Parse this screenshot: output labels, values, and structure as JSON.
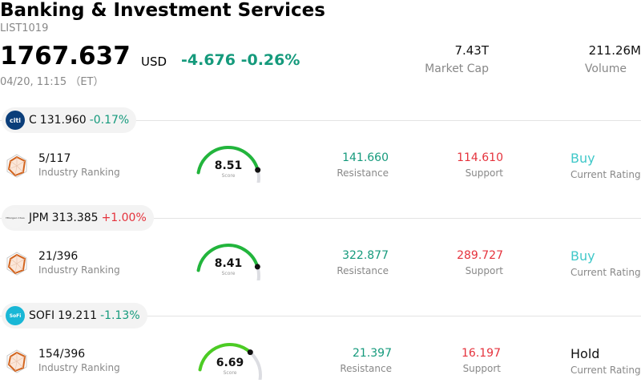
{
  "header": {
    "title": "Banking & Investment Services",
    "code": "LIST1019",
    "price": "1767.637",
    "currency": "USD",
    "change": "-4.676",
    "change_pct": "-0.26%",
    "time": "04/20, 11:15 （ET）",
    "market_cap_value": "7.43T",
    "market_cap_label": "Market Cap",
    "volume_value": "211.26M",
    "volume_label": "Volume"
  },
  "colors": {
    "up": "#e5323c",
    "down": "#159a7c",
    "buy": "#40c8c9",
    "gauge_green": "#22b53c",
    "gauge_track": "#dcdde2"
  },
  "stocks": [
    {
      "ticker": "C",
      "price": "131.960",
      "change_pct": "-0.17%",
      "logo_text": "citi",
      "logo_icon": "citi-logo-icon",
      "rank": "5/117",
      "rank_label": "Industry Ranking",
      "score": "8.51",
      "score_fraction": 0.851,
      "score_label": "Score",
      "resistance": "141.660",
      "resistance_label": "Resistance",
      "support": "114.610",
      "support_label": "Support",
      "rating": "Buy",
      "rating_label": "Current Rating"
    },
    {
      "ticker": "JPM",
      "price": "313.385",
      "change_pct": "+1.00%",
      "logo_text": "JPMorgan Chase",
      "logo_icon": "jpmorgan-logo-icon",
      "rank": "21/396",
      "rank_label": "Industry Ranking",
      "score": "8.41",
      "score_fraction": 0.841,
      "score_label": "Score",
      "resistance": "322.877",
      "resistance_label": "Resistance",
      "support": "289.727",
      "support_label": "Support",
      "rating": "Buy",
      "rating_label": "Current Rating"
    },
    {
      "ticker": "SOFI",
      "price": "19.211",
      "change_pct": "-1.13%",
      "logo_text": "SoFi",
      "logo_icon": "sofi-logo-icon",
      "rank": "154/396",
      "rank_label": "Industry Ranking",
      "score": "6.69",
      "score_fraction": 0.669,
      "score_label": "Score",
      "resistance": "21.397",
      "resistance_label": "Resistance",
      "support": "16.197",
      "support_label": "Support",
      "rating": "Hold",
      "rating_label": "Current Rating"
    }
  ]
}
